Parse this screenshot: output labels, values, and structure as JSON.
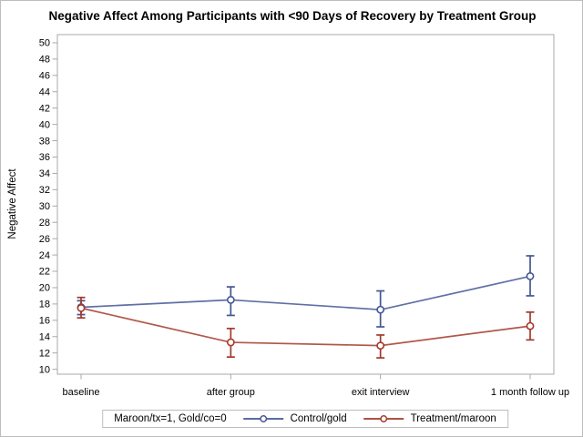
{
  "legend_note": "Maroon/tx=1, Gold/co=0",
  "chart_data": {
    "type": "line",
    "title": "Negative Affect Among Participants with <90 Days of Recovery by Treatment Group",
    "xlabel": "",
    "ylabel": "Negative Affect",
    "categories": [
      "baseline",
      "after group",
      "exit interview",
      "1 month follow up"
    ],
    "series": [
      {
        "name": "Control/gold",
        "color": "#445694",
        "marker": "open-circle",
        "values": [
          17.6,
          18.5,
          17.3,
          21.4
        ],
        "error_low": [
          16.7,
          16.6,
          15.2,
          19.0
        ],
        "error_high": [
          18.4,
          20.1,
          19.6,
          23.9
        ]
      },
      {
        "name": "Treatment/maroon",
        "color": "#A23A2B",
        "marker": "open-circle",
        "values": [
          17.5,
          13.3,
          12.9,
          15.3
        ],
        "error_low": [
          16.3,
          11.5,
          11.4,
          13.6
        ],
        "error_high": [
          18.8,
          15.0,
          14.2,
          17.0
        ]
      }
    ],
    "ylim": [
      9.4,
      51.0
    ],
    "yticks": {
      "min": 10,
      "max": 50,
      "step": 2
    },
    "grid": false,
    "error_bars": true,
    "legend_position": "bottom",
    "axis_color": "#a8a8a8"
  }
}
